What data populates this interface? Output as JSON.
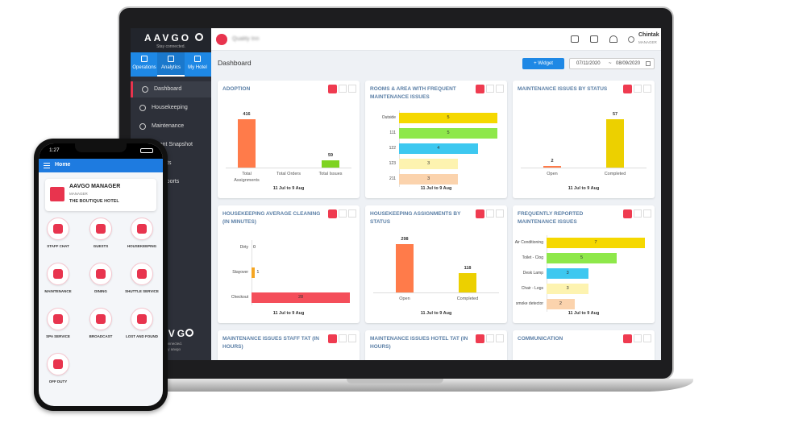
{
  "laptop": {
    "sidebar": {
      "brand": "AAVGO",
      "tagline": "Stay connected.",
      "tabs": [
        "Operations",
        "Analytics",
        "My Hotel"
      ],
      "menu": [
        "Dashboard",
        "Housekeeping",
        "Maintenance",
        "ement Snapshot",
        "Reports",
        "ed Reports"
      ],
      "footer_brand": "AVG",
      "footer_tagline": "connected.",
      "footer_credit": "d by aavgo"
    },
    "header": {
      "hotel": "Quality Inn",
      "user": "Chintak",
      "role": "MANAGER"
    },
    "toolbar": {
      "title": "Dashboard",
      "widget_button": "+ Widget",
      "date_from": "07/11/2020",
      "date_separator": "~",
      "date_to": "08/09/2020"
    },
    "widgets": [
      {
        "type": "bar",
        "title": "ADOPTION",
        "categories": [
          "Total Assignments",
          "Total Orders",
          "Total Issues"
        ],
        "values": [
          416,
          0,
          59
        ],
        "value_labels": [
          "416",
          null,
          "59"
        ],
        "colors": [
          "#ff7b4a",
          "#ff7b4a",
          "#7ed321"
        ],
        "footer": "11 Jul to 9 Aug"
      },
      {
        "type": "barh",
        "title": "ROOMS & AREA WITH FREQUENT MAINTENANCE ISSUES",
        "categories": [
          "Outside",
          "111",
          "122",
          "123",
          "211"
        ],
        "values": [
          5,
          5,
          4,
          3,
          3
        ],
        "colors": [
          "#f5d800",
          "#8ee84a",
          "#3dc8f0",
          "#fdf3b0",
          "#fbd3ad"
        ],
        "footer": "11 Jul to 9 Aug"
      },
      {
        "type": "bar",
        "title": "MAINTENANCE ISSUES BY STATUS",
        "categories": [
          "Open",
          "Completed"
        ],
        "values": [
          2,
          57
        ],
        "colors": [
          "#ff7b4a",
          "#ecd000"
        ],
        "footer": "11 Jul to 9 Aug"
      },
      {
        "type": "barh",
        "title": "HOUSEKEEPING AVERAGE CLEANING (IN MINUTES)",
        "categories": [
          "Dirty",
          "Stayover",
          "Checkout"
        ],
        "values": [
          0,
          1,
          28
        ],
        "colors": [
          "#ff7b4a",
          "#f5a623",
          "#f44e5a"
        ],
        "footer": "11 Jul to 9 Aug"
      },
      {
        "type": "bar",
        "title": "HOUSEKEEPING ASSIGNMENTS BY STATUS",
        "categories": [
          "Open",
          "Completed"
        ],
        "values": [
          298,
          118
        ],
        "colors": [
          "#ff7b4a",
          "#ecd000"
        ],
        "footer": "11 Jul to 9 Aug"
      },
      {
        "type": "barh",
        "title": "FREQUENTLY REPORTED MAINTENANCE ISSUES",
        "categories": [
          "Air Conditioning",
          "Toilet - Clog",
          "Desk Lamp",
          "Chair - Legs",
          "smoke detector"
        ],
        "values": [
          7,
          5,
          3,
          3,
          2
        ],
        "colors": [
          "#f5d800",
          "#8ee84a",
          "#3dc8f0",
          "#fdf3b0",
          "#fbd3ad"
        ],
        "footer": "11 Jul to 9 Aug"
      },
      {
        "title": "MAINTENANCE ISSUES STAFF TAT (IN HOURS)"
      },
      {
        "title": "MAINTENANCE ISSUES HOTEL TAT (IN HOURS)"
      },
      {
        "title": "COMMUNICATION"
      }
    ]
  },
  "phone": {
    "time": "1:27",
    "header": "Home",
    "profile": {
      "name": "AAVGO MANAGER",
      "role": "MANAGER",
      "hotel": "THE BOUTIQUE HOTEL"
    },
    "tiles": [
      "STAFF CHAT",
      "GUESTS",
      "HOUSEKEEPING",
      "MAINTENANCE",
      "DINING",
      "SHUTTLE SERVICE",
      "SPA SERVICE",
      "BROADCAST",
      "LOST AND FOUND",
      "OFF DUTY"
    ]
  }
}
